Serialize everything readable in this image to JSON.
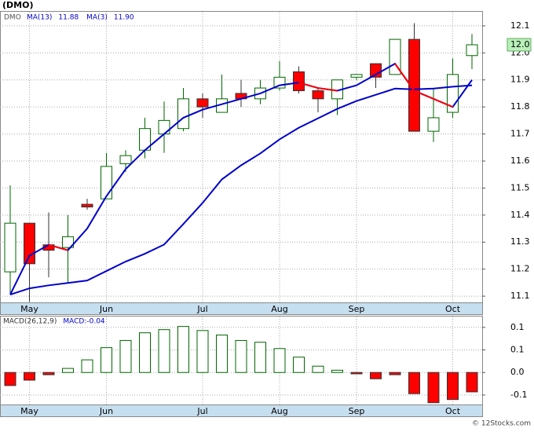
{
  "chart_data": [
    {
      "type": "candlestick",
      "title": "(DMO)",
      "symbol": "DMO",
      "categories": [
        null,
        "May",
        null,
        null,
        null,
        "Jun",
        null,
        null,
        null,
        null,
        "Jul",
        null,
        null,
        null,
        "Aug",
        null,
        null,
        null,
        "Sep",
        null,
        null,
        null,
        null,
        "Oct",
        null
      ],
      "open": [
        11.19,
        11.37,
        11.29,
        11.28,
        11.44,
        11.46,
        11.59,
        11.64,
        11.7,
        11.72,
        11.83,
        11.78,
        11.85,
        11.83,
        11.87,
        11.93,
        11.86,
        11.83,
        11.91,
        11.96,
        11.92,
        12.05,
        11.71,
        11.78,
        11.99
      ],
      "high": [
        11.51,
        11.37,
        11.41,
        11.4,
        11.46,
        11.63,
        11.64,
        11.76,
        11.82,
        11.87,
        11.85,
        11.92,
        11.9,
        11.9,
        11.97,
        11.95,
        11.87,
        11.9,
        11.92,
        11.96,
        12.05,
        12.11,
        11.87,
        11.98,
        12.07
      ],
      "low": [
        11.11,
        11.08,
        11.17,
        11.15,
        11.42,
        11.46,
        11.56,
        11.61,
        11.63,
        11.71,
        11.76,
        11.78,
        11.8,
        11.81,
        11.86,
        11.85,
        11.78,
        11.77,
        11.9,
        11.87,
        11.92,
        11.71,
        11.67,
        11.76,
        11.94
      ],
      "close": [
        11.37,
        11.22,
        11.27,
        11.32,
        11.43,
        11.58,
        11.62,
        11.72,
        11.75,
        11.83,
        11.8,
        11.83,
        11.83,
        11.87,
        11.91,
        11.86,
        11.83,
        11.9,
        11.92,
        11.91,
        12.05,
        11.71,
        11.76,
        11.92,
        12.03
      ],
      "up_color": "#006600",
      "down_color": "#ff0000",
      "series": [
        {
          "name": "MA(13)",
          "color": "#0000cc",
          "legend_value": 11.88,
          "values": [
            11.106,
            11.129,
            11.14,
            11.149,
            11.158,
            11.193,
            11.228,
            11.257,
            11.291,
            11.367,
            11.445,
            11.532,
            11.584,
            11.628,
            11.68,
            11.723,
            11.758,
            11.793,
            11.822,
            11.845,
            11.868,
            11.865,
            11.868,
            11.875,
            11.88
          ]
        },
        {
          "name": "MA(3)",
          "color": "#0000cc",
          "down_color": "#ff0000",
          "legend_value": {
            "value": 11.9,
            "label": "11.90"
          },
          "values": [
            11.106,
            11.25,
            11.29,
            11.27,
            11.35,
            11.47,
            11.57,
            11.64,
            11.7,
            11.76,
            11.79,
            11.81,
            11.83,
            11.85,
            11.88,
            11.89,
            11.87,
            11.86,
            11.88,
            11.92,
            11.96,
            11.86,
            11.83,
            11.8,
            11.9
          ]
        }
      ],
      "last_price": {
        "value": 12.03,
        "label": "12.0"
      },
      "ylim": [
        11.077,
        12.152
      ],
      "yticks": [
        11.1,
        11.2,
        11.3,
        11.4,
        11.5,
        11.6,
        11.7,
        11.8,
        11.9,
        {
          "value": 12,
          "label": "12.0"
        },
        12.1
      ],
      "grid": true
    },
    {
      "type": "bar",
      "title": "MACD(26,12,9)",
      "last_label": "MACD:",
      "last_value": -0.04,
      "categories": [
        null,
        "May",
        null,
        null,
        null,
        "Jun",
        null,
        null,
        null,
        null,
        "Jul",
        null,
        null,
        null,
        "Aug",
        null,
        null,
        null,
        "Sep",
        null,
        null,
        null,
        null,
        "Oct",
        null
      ],
      "values": [
        -0.029,
        -0.017,
        -0.005,
        0.009,
        0.028,
        0.055,
        0.071,
        0.088,
        0.095,
        0.102,
        0.093,
        0.083,
        0.071,
        0.067,
        0.053,
        0.034,
        0.014,
        0.005,
        -0.003,
        -0.014,
        -0.005,
        -0.047,
        -0.067,
        -0.06,
        -0.043
      ],
      "up_color": "#006600",
      "down_color": "#ff0000",
      "ylim": [
        -0.071,
        0.124
      ],
      "yticks": [
        {
          "value": 0.1,
          "label": "0.1"
        },
        {
          "value": 0.05,
          "label": "0.1"
        },
        {
          "value": 0,
          "label": "0.0"
        },
        {
          "value": -0.05,
          "label": "-0.1"
        }
      ],
      "grid": true
    },
    {
      "watermark": "© 12Stocks.com"
    }
  ]
}
